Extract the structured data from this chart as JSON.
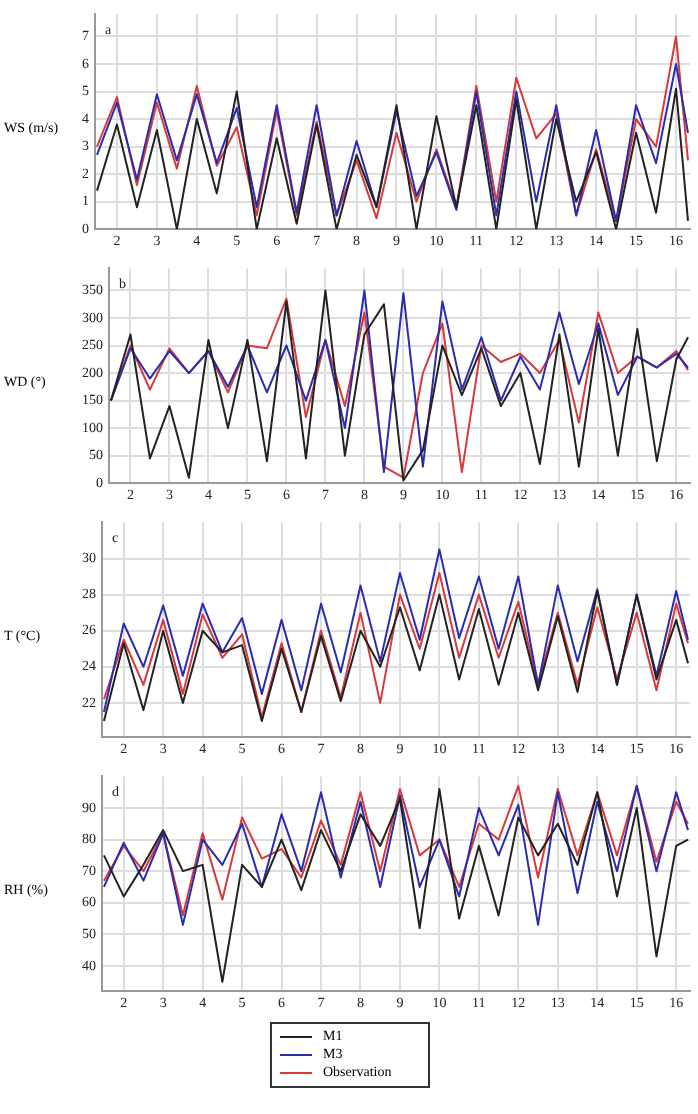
{
  "chart_data": [
    {
      "type": "line",
      "ylabel": "WS (m/s)",
      "annotations": [
        "a"
      ],
      "x": [
        1.5,
        2,
        2.5,
        3,
        3.5,
        4,
        4.5,
        5,
        5.5,
        6,
        6.5,
        7,
        7.5,
        8,
        8.5,
        9,
        9.5,
        10,
        10.5,
        11,
        11.5,
        12,
        12.5,
        13,
        13.5,
        14,
        14.5,
        15,
        15.5,
        16,
        16.3
      ],
      "xlim": [
        1.45,
        16.35
      ],
      "xticks": [
        2,
        3,
        4,
        5,
        6,
        7,
        8,
        9,
        10,
        11,
        12,
        13,
        14,
        15,
        16
      ],
      "ylim": [
        0,
        7.8
      ],
      "yticks": [
        0,
        1,
        2,
        3,
        4,
        5,
        6,
        7
      ],
      "grid": true,
      "line_style": "solid",
      "marker": "none",
      "series": [
        {
          "color": "#222222",
          "values": [
            1.4,
            3.8,
            0.8,
            3.6,
            0.0,
            4.0,
            1.3,
            5.0,
            0.0,
            3.3,
            0.2,
            3.8,
            0.0,
            2.7,
            0.8,
            4.5,
            0.0,
            4.1,
            0.8,
            4.5,
            0.0,
            4.7,
            0.0,
            4.0,
            1.0,
            2.8,
            0.0,
            3.5,
            0.6,
            5.1,
            0.3
          ]
        },
        {
          "color": "#2b2bb0",
          "values": [
            2.7,
            4.6,
            1.8,
            4.9,
            2.5,
            4.9,
            2.4,
            4.4,
            0.8,
            4.5,
            0.6,
            4.5,
            0.5,
            3.2,
            0.8,
            4.3,
            1.2,
            2.8,
            0.7,
            5.0,
            0.5,
            5.0,
            1.0,
            4.5,
            0.5,
            3.6,
            0.3,
            4.5,
            2.4,
            6.0,
            3.5
          ]
        },
        {
          "color": "#d63a3a",
          "values": [
            3.0,
            4.8,
            1.6,
            4.6,
            2.2,
            5.2,
            2.3,
            3.7,
            0.5,
            4.3,
            0.5,
            3.9,
            0.5,
            2.5,
            0.4,
            3.5,
            1.0,
            2.9,
            0.8,
            5.2,
            1.0,
            5.5,
            3.3,
            4.2,
            0.5,
            2.9,
            0.3,
            4.0,
            3.0,
            7.0,
            2.5
          ]
        }
      ]
    },
    {
      "type": "line",
      "ylabel": "WD (°)",
      "annotations": [
        "b"
      ],
      "x": [
        1.5,
        2,
        2.5,
        3,
        3.5,
        4,
        4.5,
        5,
        5.5,
        6,
        6.5,
        7,
        7.5,
        8,
        8.5,
        9,
        9.5,
        10,
        10.5,
        11,
        11.5,
        12,
        12.5,
        13,
        13.5,
        14,
        14.5,
        15,
        15.5,
        16,
        16.3
      ],
      "xlim": [
        1.45,
        16.35
      ],
      "xticks": [
        2,
        3,
        4,
        5,
        6,
        7,
        8,
        9,
        10,
        11,
        12,
        13,
        14,
        15,
        16
      ],
      "ylim": [
        0,
        390
      ],
      "yticks": [
        0,
        50,
        100,
        150,
        200,
        250,
        300,
        350
      ],
      "grid": true,
      "line_style": "solid",
      "marker": "none",
      "series": [
        {
          "color": "#222222",
          "values": [
            150,
            270,
            45,
            140,
            10,
            260,
            100,
            260,
            40,
            330,
            45,
            350,
            50,
            270,
            325,
            5,
            60,
            250,
            160,
            245,
            140,
            200,
            35,
            270,
            30,
            280,
            50,
            280,
            40,
            225,
            265
          ]
        },
        {
          "color": "#2b2bb0",
          "values": [
            150,
            245,
            190,
            240,
            200,
            240,
            175,
            250,
            165,
            250,
            150,
            260,
            100,
            350,
            20,
            345,
            30,
            330,
            170,
            265,
            150,
            230,
            170,
            310,
            180,
            290,
            160,
            230,
            210,
            235,
            210
          ]
        },
        {
          "color": "#d63a3a",
          "values": [
            150,
            250,
            170,
            245,
            200,
            240,
            165,
            250,
            245,
            335,
            120,
            260,
            140,
            310,
            30,
            10,
            200,
            290,
            20,
            250,
            220,
            235,
            200,
            260,
            110,
            310,
            200,
            230,
            210,
            240,
            205
          ]
        }
      ]
    },
    {
      "type": "line",
      "ylabel": "T (°C)",
      "annotations": [
        "c"
      ],
      "x": [
        1.5,
        2,
        2.5,
        3,
        3.5,
        4,
        4.5,
        5,
        5.5,
        6,
        6.5,
        7,
        7.5,
        8,
        8.5,
        9,
        9.5,
        10,
        10.5,
        11,
        11.5,
        12,
        12.5,
        13,
        13.5,
        14,
        14.5,
        15,
        15.5,
        16,
        16.3
      ],
      "xlim": [
        1.45,
        16.35
      ],
      "xticks": [
        2,
        3,
        4,
        5,
        6,
        7,
        8,
        9,
        10,
        11,
        12,
        13,
        14,
        15,
        16
      ],
      "ylim": [
        20.1,
        32
      ],
      "yticks": [
        22,
        24,
        26,
        28,
        30
      ],
      "grid": true,
      "line_style": "solid",
      "marker": "none",
      "series": [
        {
          "color": "#222222",
          "values": [
            21.0,
            25.3,
            21.6,
            26.0,
            22.0,
            26.0,
            24.8,
            25.2,
            21.0,
            25.0,
            21.5,
            25.7,
            22.1,
            26.0,
            24.0,
            27.3,
            23.8,
            28.0,
            23.3,
            27.2,
            23.0,
            27.0,
            22.7,
            26.8,
            22.6,
            28.2,
            23.0,
            28.0,
            23.3,
            26.6,
            24.2
          ]
        },
        {
          "color": "#2b2bb0",
          "values": [
            21.5,
            26.4,
            24.0,
            27.4,
            23.5,
            27.5,
            24.8,
            26.7,
            22.5,
            26.6,
            22.7,
            27.5,
            23.7,
            28.5,
            24.3,
            29.2,
            25.5,
            30.5,
            25.6,
            29.0,
            25.0,
            29.0,
            23.0,
            28.5,
            24.3,
            28.3,
            23.0,
            28.0,
            23.5,
            28.2,
            25.5
          ]
        },
        {
          "color": "#d63a3a",
          "values": [
            22.2,
            25.5,
            23.0,
            26.6,
            22.5,
            26.9,
            24.5,
            25.8,
            21.2,
            25.3,
            21.5,
            26.0,
            22.3,
            27.0,
            22.0,
            28.0,
            25.0,
            29.2,
            24.5,
            28.0,
            24.5,
            27.6,
            23.0,
            27.0,
            23.0,
            27.3,
            23.3,
            27.0,
            22.7,
            27.5,
            25.3
          ]
        }
      ]
    },
    {
      "type": "line",
      "ylabel": "RH (%)",
      "annotations": [
        "d"
      ],
      "x": [
        1.5,
        2,
        2.5,
        3,
        3.5,
        4,
        4.5,
        5,
        5.5,
        6,
        6.5,
        7,
        7.5,
        8,
        8.5,
        9,
        9.5,
        10,
        10.5,
        11,
        11.5,
        12,
        12.5,
        13,
        13.5,
        14,
        14.5,
        15,
        15.5,
        16,
        16.3
      ],
      "xlim": [
        1.45,
        16.35
      ],
      "xticks": [
        2,
        3,
        4,
        5,
        6,
        7,
        8,
        9,
        10,
        11,
        12,
        13,
        14,
        15,
        16
      ],
      "ylim": [
        32,
        100
      ],
      "yticks": [
        40,
        50,
        60,
        70,
        80,
        90
      ],
      "grid": true,
      "line_style": "solid",
      "marker": "none",
      "legend": "bottom",
      "series": [
        {
          "name": "M1",
          "color": "#222222",
          "values": [
            75,
            62,
            72,
            83,
            70,
            72,
            35,
            72,
            65,
            80,
            64,
            83,
            70,
            88,
            78,
            93,
            52,
            96,
            55,
            78,
            56,
            87,
            75,
            85,
            72,
            95,
            62,
            90,
            43,
            78,
            80
          ]
        },
        {
          "name": "M3",
          "color": "#2b2bb0",
          "values": [
            65,
            79,
            67,
            82,
            53,
            80,
            72,
            85,
            65,
            88,
            70,
            95,
            68,
            92,
            65,
            94,
            65,
            80,
            62,
            90,
            75,
            91,
            53,
            95,
            63,
            92,
            70,
            97,
            70,
            95,
            83
          ]
        },
        {
          "name": "Observation",
          "color": "#d63a3a",
          "values": [
            67,
            78,
            70,
            82,
            56,
            82,
            61,
            87,
            74,
            77,
            68,
            86,
            72,
            95,
            70,
            96,
            75,
            80,
            65,
            85,
            80,
            97,
            68,
            96,
            75,
            95,
            75,
            97,
            73,
            92,
            85
          ]
        }
      ]
    }
  ]
}
